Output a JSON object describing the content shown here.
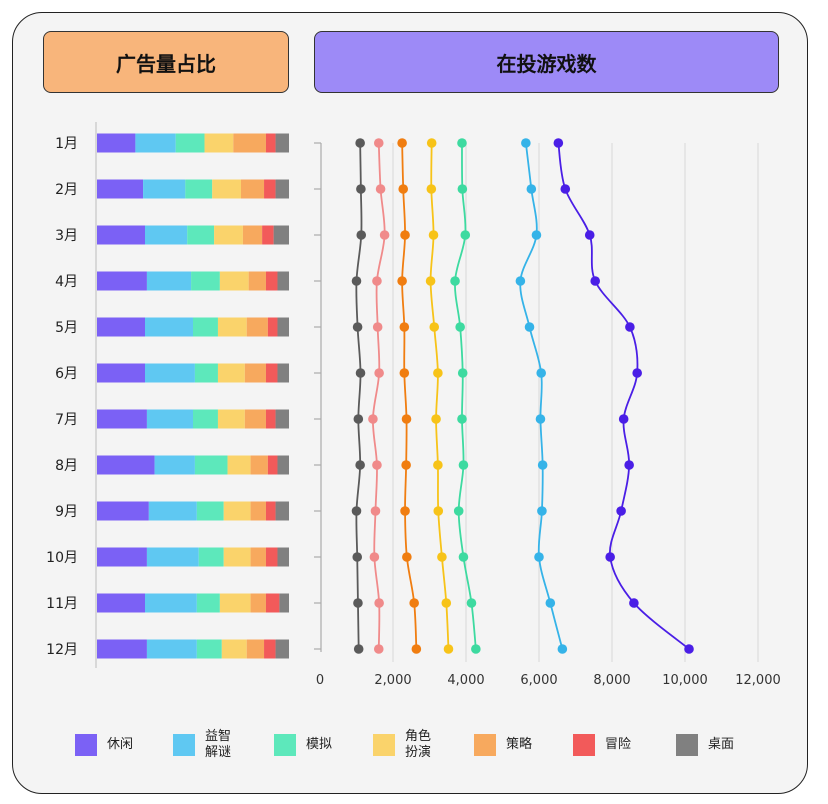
{
  "titles": {
    "left": "广告量占比",
    "right": "在投游戏数"
  },
  "chart_data": [
    {
      "type": "bar",
      "stacked": true,
      "normalized": true,
      "orientation": "horizontal",
      "title": "广告量占比",
      "categories": [
        "1月",
        "2月",
        "3月",
        "4月",
        "5月",
        "6月",
        "7月",
        "8月",
        "9月",
        "10月",
        "11月",
        "12月"
      ],
      "series": [
        {
          "name": "休闲",
          "values": [
            20,
            24,
            25,
            26,
            25,
            25,
            26,
            30,
            27,
            26,
            25,
            26
          ]
        },
        {
          "name": "益智解谜",
          "values": [
            21,
            22,
            22,
            23,
            25,
            26,
            24,
            21,
            25,
            27,
            27,
            26
          ]
        },
        {
          "name": "模拟",
          "values": [
            15,
            14,
            14,
            15,
            13,
            12,
            13,
            17,
            14,
            13,
            12,
            13
          ]
        },
        {
          "name": "角色扮演",
          "values": [
            15,
            15,
            15,
            15,
            15,
            14,
            14,
            12,
            14,
            14,
            16,
            13
          ]
        },
        {
          "name": "策略",
          "values": [
            17,
            12,
            10,
            9,
            11,
            11,
            11,
            9,
            8,
            8,
            8,
            9
          ]
        },
        {
          "name": "冒险",
          "values": [
            5,
            6,
            6,
            6,
            5,
            6,
            5,
            5,
            5,
            6,
            7,
            6
          ]
        },
        {
          "name": "桌面",
          "values": [
            7,
            7,
            8,
            6,
            6,
            6,
            7,
            6,
            7,
            6,
            5,
            7
          ]
        }
      ]
    },
    {
      "type": "line",
      "title": "在投游戏数",
      "categories": [
        "1月",
        "2月",
        "3月",
        "4月",
        "5月",
        "6月",
        "7月",
        "8月",
        "9月",
        "10月",
        "11月",
        "12月"
      ],
      "xlim": [
        0,
        13000
      ],
      "xticks": [
        0,
        2000,
        4000,
        6000,
        8000,
        10000,
        12000
      ],
      "xtick_labels": [
        "0",
        "2,000",
        "4,000",
        "6,000",
        "8,000",
        "10,000",
        "12,000"
      ],
      "grid": true,
      "series": [
        {
          "name": "桌面",
          "values": [
            1100,
            1120,
            1130,
            1000,
            1030,
            1110,
            1050,
            1100,
            1000,
            1020,
            1040,
            1060
          ]
        },
        {
          "name": "冒险",
          "values": [
            1610,
            1660,
            1770,
            1560,
            1580,
            1620,
            1450,
            1560,
            1520,
            1490,
            1620,
            1610
          ]
        },
        {
          "name": "策略",
          "values": [
            2250,
            2280,
            2330,
            2250,
            2310,
            2310,
            2370,
            2360,
            2330,
            2380,
            2580,
            2640
          ]
        },
        {
          "name": "角色扮演",
          "values": [
            3060,
            3050,
            3110,
            3030,
            3130,
            3230,
            3180,
            3230,
            3240,
            3340,
            3460,
            3520
          ]
        },
        {
          "name": "模拟",
          "values": [
            3890,
            3900,
            3980,
            3700,
            3840,
            3910,
            3890,
            3930,
            3800,
            3930,
            4150,
            4270
          ]
        },
        {
          "name": "益智解谜",
          "values": [
            5640,
            5790,
            5930,
            5490,
            5740,
            6060,
            6040,
            6100,
            6080,
            6000,
            6310,
            6640
          ]
        },
        {
          "name": "休闲",
          "values": [
            6530,
            6720,
            7390,
            7540,
            8490,
            8690,
            8320,
            8470,
            8250,
            7950,
            8600,
            10110
          ]
        }
      ]
    }
  ],
  "legend": [
    {
      "label": "休闲",
      "color": "#7b61f5"
    },
    {
      "label": "益智\n解谜",
      "color": "#5fc8f2"
    },
    {
      "label": "模拟",
      "color": "#5de8bb"
    },
    {
      "label": "角色\n扮演",
      "color": "#fad36b"
    },
    {
      "label": "策略",
      "color": "#f7a95e"
    },
    {
      "label": "冒险",
      "color": "#f25a5a"
    },
    {
      "label": "桌面",
      "color": "#808080"
    }
  ],
  "line_colors": {
    "桌面": "#5a5a5a",
    "冒险": "#f08a8a",
    "策略": "#f07d10",
    "角色扮演": "#f7c318",
    "模拟": "#3ddaa0",
    "益智解谜": "#35b3e8",
    "休闲": "#4a1ee6"
  }
}
